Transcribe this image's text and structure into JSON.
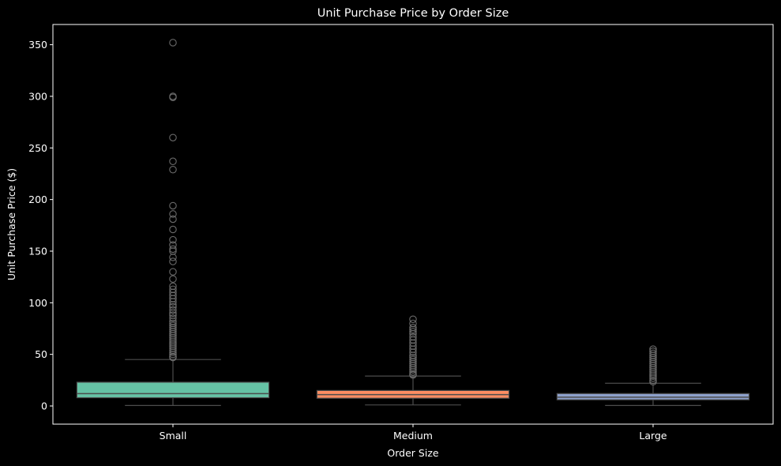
{
  "chart_data": {
    "type": "box",
    "title": "Unit Purchase Price by Order Size",
    "xlabel": "Order Size",
    "ylabel": "Unit Purchase Price ($)",
    "ylim": [
      -17.6,
      369.6
    ],
    "yticks": [
      0,
      50,
      100,
      150,
      200,
      250,
      300,
      350
    ],
    "grid": false,
    "legend": "none",
    "categories": [
      "Small",
      "Medium",
      "Large"
    ],
    "colors": {
      "Small": "#66c2a5",
      "Medium": "#fc8d62",
      "Large": "#8da0cb",
      "lines": "#4c4c4c",
      "background": "#000000",
      "text": "#ffffff"
    },
    "boxes": [
      {
        "category": "Small",
        "whisker_low": 0.5,
        "q1": 8,
        "median": 12,
        "q3": 23,
        "whisker_high": 45,
        "outliers": [
          352,
          300,
          299,
          260,
          237,
          229,
          194,
          186,
          181,
          171,
          161,
          156,
          152,
          150,
          144,
          140,
          130,
          123,
          116,
          113,
          110,
          107,
          104,
          101,
          98,
          96,
          93,
          90,
          88,
          85,
          82,
          80,
          78,
          76,
          74,
          72,
          70,
          68,
          66,
          64,
          62,
          60,
          58,
          56,
          54,
          52,
          50,
          48,
          47
        ]
      },
      {
        "category": "Medium",
        "whisker_low": 1,
        "q1": 7.5,
        "median": 11,
        "q3": 15,
        "whisker_high": 29,
        "outliers": [
          84,
          80,
          76,
          74,
          72,
          70,
          67,
          64,
          61,
          58,
          55,
          52,
          49,
          47,
          45,
          43,
          41,
          39,
          37,
          35,
          33,
          31,
          30
        ]
      },
      {
        "category": "Large",
        "whisker_low": 0.5,
        "q1": 6,
        "median": 8.5,
        "q3": 12,
        "whisker_high": 22,
        "outliers": [
          55,
          53,
          51,
          49,
          47,
          45,
          43,
          41,
          39,
          37,
          35,
          33,
          31,
          29,
          27,
          25,
          23.5
        ]
      }
    ]
  }
}
